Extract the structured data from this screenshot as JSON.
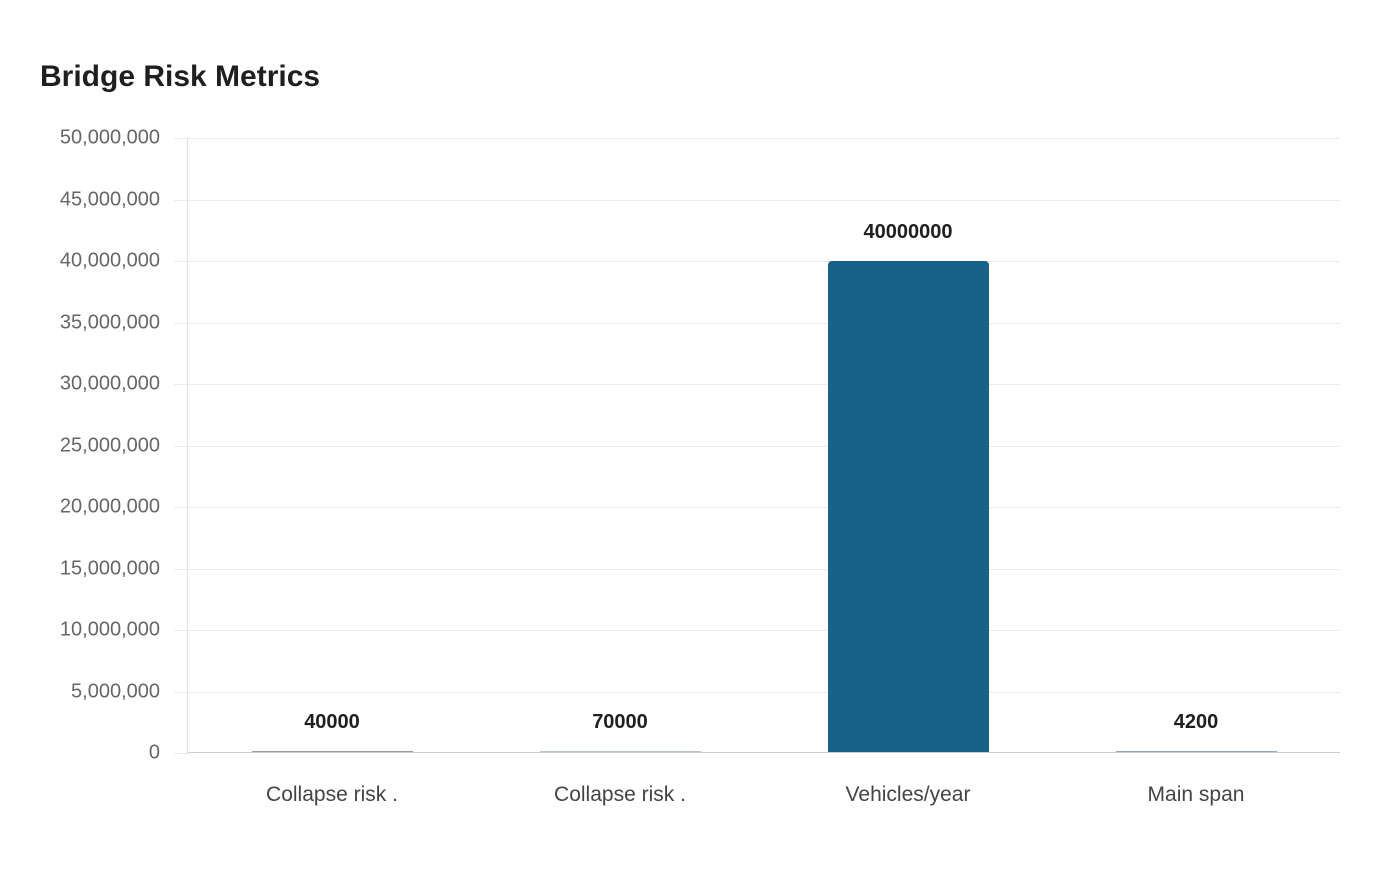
{
  "chart_data": {
    "type": "bar",
    "title": "Bridge Risk Metrics",
    "xlabel": "",
    "ylabel": "",
    "categories": [
      "Collapse risk .",
      "Collapse risk .",
      "Vehicles/year",
      "Main span"
    ],
    "values": [
      40000,
      70000,
      40000000,
      4200
    ],
    "value_labels": [
      "40000",
      "70000",
      "40000000",
      "4200"
    ],
    "ylim": [
      0,
      50000000
    ],
    "yticks": [
      0,
      5000000,
      10000000,
      15000000,
      20000000,
      25000000,
      30000000,
      35000000,
      40000000,
      45000000,
      50000000
    ],
    "ytick_labels": [
      "0",
      "5,000,000",
      "10,000,000",
      "15,000,000",
      "20,000,000",
      "25,000,000",
      "30,000,000",
      "35,000,000",
      "40,000,000",
      "45,000,000",
      "50,000,000"
    ],
    "grid": true,
    "legend": null,
    "bar_colors": [
      "#9a9a9a",
      "#b8c4c8",
      "#186188",
      "#8fa9b3"
    ],
    "accent_color": "#186188"
  }
}
